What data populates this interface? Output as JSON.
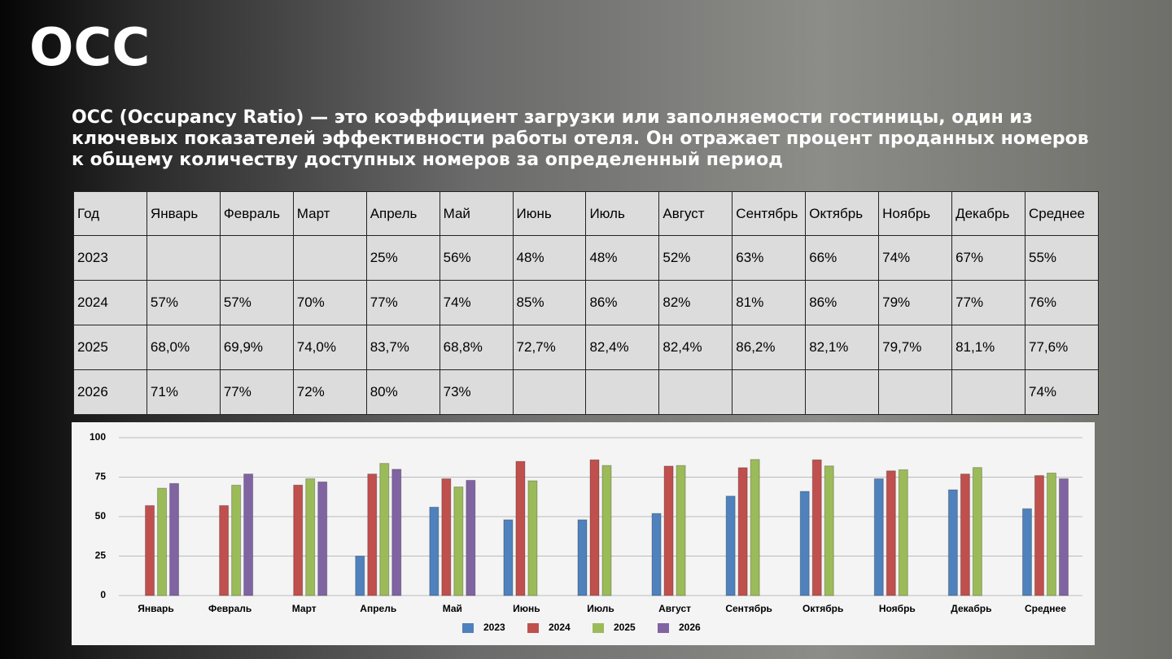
{
  "header": {
    "title": "OCC",
    "description": "OCC (Occupancy Ratio) — это коэффициент загрузки или заполняемости гостиницы, один из ключевых показателей эффективности работы отеля. Он отражает процент проданных номеров к общему количеству доступных номеров за определенный период"
  },
  "table": {
    "header": [
      "Год",
      "Январь",
      "Февраль",
      "Март",
      "Апрель",
      "Май",
      "Июнь",
      "Июль",
      "Август",
      "Сентябрь",
      "Октябрь",
      "Ноябрь",
      "Декабрь",
      "Среднее"
    ],
    "rows": [
      [
        "2023",
        null,
        null,
        null,
        "25%",
        "56%",
        "48%",
        "48%",
        "52%",
        "63%",
        "66%",
        "74%",
        "67%",
        "55%"
      ],
      [
        "2024",
        "57%",
        "57%",
        "70%",
        "77%",
        "74%",
        "85%",
        "86%",
        "82%",
        "81%",
        "86%",
        "79%",
        "77%",
        "76%"
      ],
      [
        "2025",
        "68,0%",
        "69,9%",
        "74,0%",
        "83,7%",
        "68,8%",
        "72,7%",
        "82,4%",
        "82,4%",
        "86,2%",
        "82,1%",
        "79,7%",
        "81,1%",
        "77,6%"
      ],
      [
        "2026",
        "71%",
        "77%",
        "72%",
        "80%",
        "73%",
        null,
        null,
        null,
        null,
        null,
        null,
        null,
        "74%"
      ]
    ]
  },
  "chart_data": {
    "type": "bar",
    "categories": [
      "Январь",
      "Февраль",
      "Март",
      "Апрель",
      "Май",
      "Июнь",
      "Июль",
      "Август",
      "Сентябрь",
      "Октябрь",
      "Ноябрь",
      "Декабрь",
      "Среднее"
    ],
    "series": [
      {
        "name": "2023",
        "color": "#4f81bd",
        "values": [
          null,
          null,
          null,
          25,
          56,
          48,
          48,
          52,
          63,
          66,
          74,
          67,
          55
        ]
      },
      {
        "name": "2024",
        "color": "#c0504d",
        "values": [
          57,
          57,
          70,
          77,
          74,
          85,
          86,
          82,
          81,
          86,
          79,
          77,
          76
        ]
      },
      {
        "name": "2025",
        "color": "#9bbb59",
        "values": [
          68.0,
          69.9,
          74.0,
          83.7,
          68.8,
          72.7,
          82.4,
          82.4,
          86.2,
          82.1,
          79.7,
          81.1,
          77.6
        ]
      },
      {
        "name": "2026",
        "color": "#8064a2",
        "values": [
          71,
          77,
          72,
          80,
          73,
          null,
          null,
          null,
          null,
          null,
          null,
          null,
          74
        ]
      }
    ],
    "ylim": [
      0,
      100
    ],
    "yticks": [
      0,
      25,
      50,
      75,
      100
    ],
    "grid": true,
    "legend": "bottom"
  }
}
